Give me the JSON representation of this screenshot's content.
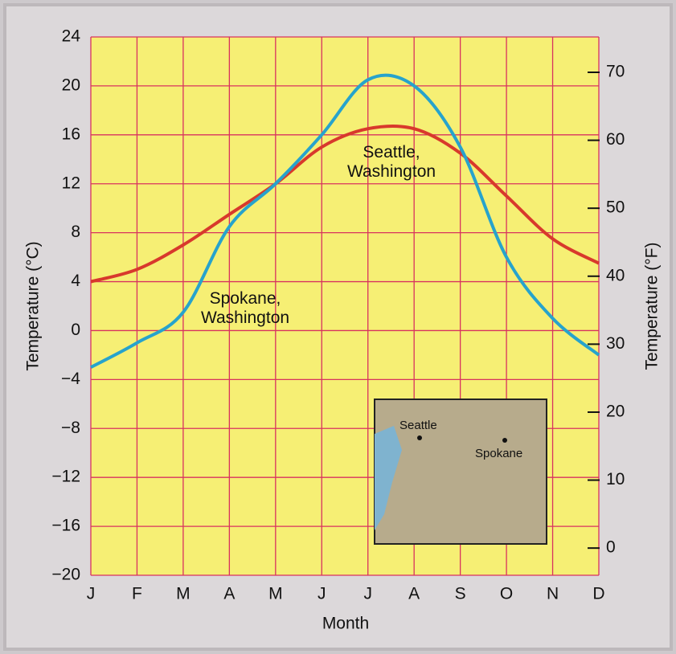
{
  "chart_data": {
    "type": "line",
    "xlabel": "Month",
    "ylabel": "Temperature (°C)",
    "y2label": "Temperature (°F)",
    "categories": [
      "J",
      "F",
      "M",
      "A",
      "M",
      "J",
      "J",
      "A",
      "S",
      "O",
      "N",
      "D"
    ],
    "series": [
      {
        "name": "Seattle, Washington",
        "color": "#d8392c",
        "values": [
          4,
          5,
          7,
          9.5,
          12,
          15,
          16.5,
          16.5,
          14.5,
          11,
          7.5,
          5.5
        ]
      },
      {
        "name": "Spokane, Washington",
        "color": "#27a3cc",
        "values": [
          -3,
          -1,
          1.5,
          8.5,
          12,
          16,
          20.5,
          20,
          15,
          6,
          1,
          -2
        ]
      }
    ],
    "ylim": [
      -20,
      24
    ],
    "yticks": [
      {
        "value": -20,
        "label": "−20"
      },
      {
        "value": -16,
        "label": "−16"
      },
      {
        "value": -12,
        "label": "−12"
      },
      {
        "value": -8,
        "label": "−8"
      },
      {
        "value": -4,
        "label": "−4"
      },
      0,
      4,
      8,
      12,
      16,
      20,
      24
    ],
    "y2lim": [
      -4,
      75.2
    ],
    "y2ticks": [
      0,
      10,
      20,
      30,
      40,
      50,
      60,
      70
    ],
    "grid": true,
    "inset_labels": [
      "Seattle",
      "Spokane"
    ]
  }
}
